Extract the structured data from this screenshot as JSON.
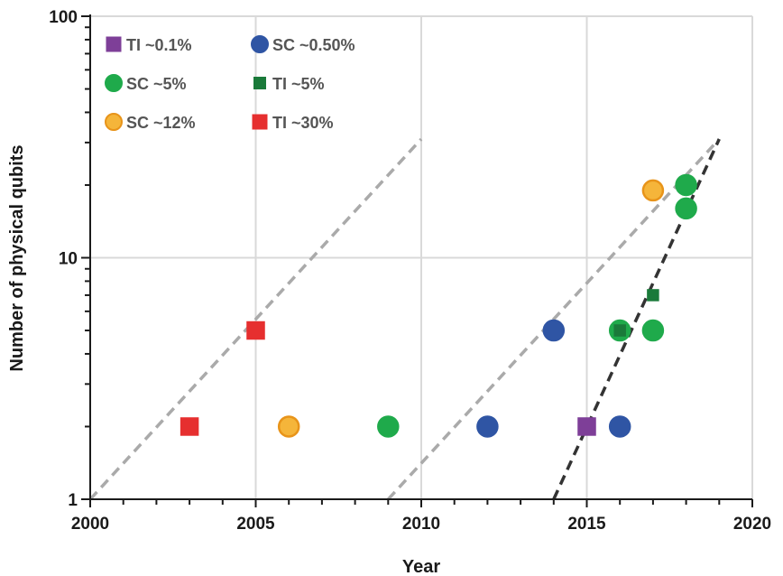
{
  "chart_data": {
    "type": "scatter",
    "title": "",
    "xlabel": "Year",
    "ylabel": "Number of physical qubits",
    "xlim": [
      2000,
      2020
    ],
    "ylim": [
      1,
      100
    ],
    "yscale": "log",
    "grid": true,
    "legend_position": "top-left",
    "x_ticks": [
      "2000",
      "2005",
      "2010",
      "2015",
      "2020"
    ],
    "y_ticks": [
      "1",
      "10",
      "100"
    ],
    "series": [
      {
        "name": "TI ~0.1%",
        "marker": "square",
        "color": "#7e3f98",
        "edge": "#7e3f98",
        "size": "large",
        "points": [
          [
            2015,
            2
          ]
        ]
      },
      {
        "name": "SC ~0.50%",
        "marker": "circle",
        "color": "#2f55a4",
        "edge": "#2f55a4",
        "size": "large",
        "points": [
          [
            2012,
            2
          ],
          [
            2014,
            5
          ],
          [
            2016,
            2
          ]
        ]
      },
      {
        "name": "SC ~5%",
        "marker": "circle",
        "color": "#1faa4b",
        "edge": "#1faa4b",
        "size": "large",
        "points": [
          [
            2009,
            2
          ],
          [
            2016,
            5
          ],
          [
            2017,
            5
          ],
          [
            2018,
            16
          ],
          [
            2018,
            20
          ]
        ]
      },
      {
        "name": "TI ~5%",
        "marker": "square",
        "color": "#1a7a3a",
        "edge": "#1a7a3a",
        "size": "small",
        "points": [
          [
            2016,
            5
          ],
          [
            2017,
            7
          ]
        ]
      },
      {
        "name": "SC ~12%",
        "marker": "circle",
        "color": "#f5b53a",
        "edge": "#e8941a",
        "size": "large",
        "points": [
          [
            2006,
            2
          ],
          [
            2017,
            19
          ]
        ]
      },
      {
        "name": "TI ~30%",
        "marker": "square",
        "color": "#e62f2f",
        "edge": "#e62f2f",
        "size": "large",
        "points": [
          [
            2003,
            2
          ],
          [
            2005,
            5
          ]
        ]
      }
    ],
    "trend_lines": [
      {
        "color": "#aaaaaa",
        "style": "dashed",
        "points": [
          [
            2000,
            1
          ],
          [
            2010,
            31
          ]
        ]
      },
      {
        "color": "#aaaaaa",
        "style": "dashed",
        "points": [
          [
            2009,
            1
          ],
          [
            2019,
            31
          ]
        ]
      },
      {
        "color": "#333333",
        "style": "dashed",
        "points": [
          [
            2014,
            1
          ],
          [
            2019,
            31
          ]
        ]
      }
    ]
  }
}
